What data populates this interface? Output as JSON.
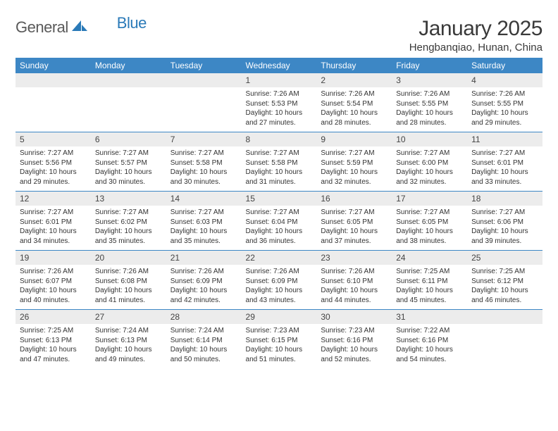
{
  "brand": {
    "part1": "General",
    "part2": "Blue"
  },
  "title": "January 2025",
  "location": "Hengbanqiao, Hunan, China",
  "colors": {
    "header_bg": "#3d87c5",
    "header_text": "#ffffff",
    "daynum_bg": "#ececec",
    "text": "#333333",
    "rule": "#3d87c5",
    "logo_gray": "#5a5a5a",
    "logo_blue": "#2a7ab8"
  },
  "typography": {
    "title_fontsize": 30,
    "location_fontsize": 15,
    "dow_fontsize": 12,
    "daynum_fontsize": 12,
    "detail_fontsize": 10
  },
  "days_of_week": [
    "Sunday",
    "Monday",
    "Tuesday",
    "Wednesday",
    "Thursday",
    "Friday",
    "Saturday"
  ],
  "weeks": [
    [
      null,
      null,
      null,
      {
        "n": "1",
        "sr": "7:26 AM",
        "ss": "5:53 PM",
        "dl": "10 hours and 27 minutes."
      },
      {
        "n": "2",
        "sr": "7:26 AM",
        "ss": "5:54 PM",
        "dl": "10 hours and 28 minutes."
      },
      {
        "n": "3",
        "sr": "7:26 AM",
        "ss": "5:55 PM",
        "dl": "10 hours and 28 minutes."
      },
      {
        "n": "4",
        "sr": "7:26 AM",
        "ss": "5:55 PM",
        "dl": "10 hours and 29 minutes."
      }
    ],
    [
      {
        "n": "5",
        "sr": "7:27 AM",
        "ss": "5:56 PM",
        "dl": "10 hours and 29 minutes."
      },
      {
        "n": "6",
        "sr": "7:27 AM",
        "ss": "5:57 PM",
        "dl": "10 hours and 30 minutes."
      },
      {
        "n": "7",
        "sr": "7:27 AM",
        "ss": "5:58 PM",
        "dl": "10 hours and 30 minutes."
      },
      {
        "n": "8",
        "sr": "7:27 AM",
        "ss": "5:58 PM",
        "dl": "10 hours and 31 minutes."
      },
      {
        "n": "9",
        "sr": "7:27 AM",
        "ss": "5:59 PM",
        "dl": "10 hours and 32 minutes."
      },
      {
        "n": "10",
        "sr": "7:27 AM",
        "ss": "6:00 PM",
        "dl": "10 hours and 32 minutes."
      },
      {
        "n": "11",
        "sr": "7:27 AM",
        "ss": "6:01 PM",
        "dl": "10 hours and 33 minutes."
      }
    ],
    [
      {
        "n": "12",
        "sr": "7:27 AM",
        "ss": "6:01 PM",
        "dl": "10 hours and 34 minutes."
      },
      {
        "n": "13",
        "sr": "7:27 AM",
        "ss": "6:02 PM",
        "dl": "10 hours and 35 minutes."
      },
      {
        "n": "14",
        "sr": "7:27 AM",
        "ss": "6:03 PM",
        "dl": "10 hours and 35 minutes."
      },
      {
        "n": "15",
        "sr": "7:27 AM",
        "ss": "6:04 PM",
        "dl": "10 hours and 36 minutes."
      },
      {
        "n": "16",
        "sr": "7:27 AM",
        "ss": "6:05 PM",
        "dl": "10 hours and 37 minutes."
      },
      {
        "n": "17",
        "sr": "7:27 AM",
        "ss": "6:05 PM",
        "dl": "10 hours and 38 minutes."
      },
      {
        "n": "18",
        "sr": "7:27 AM",
        "ss": "6:06 PM",
        "dl": "10 hours and 39 minutes."
      }
    ],
    [
      {
        "n": "19",
        "sr": "7:26 AM",
        "ss": "6:07 PM",
        "dl": "10 hours and 40 minutes."
      },
      {
        "n": "20",
        "sr": "7:26 AM",
        "ss": "6:08 PM",
        "dl": "10 hours and 41 minutes."
      },
      {
        "n": "21",
        "sr": "7:26 AM",
        "ss": "6:09 PM",
        "dl": "10 hours and 42 minutes."
      },
      {
        "n": "22",
        "sr": "7:26 AM",
        "ss": "6:09 PM",
        "dl": "10 hours and 43 minutes."
      },
      {
        "n": "23",
        "sr": "7:26 AM",
        "ss": "6:10 PM",
        "dl": "10 hours and 44 minutes."
      },
      {
        "n": "24",
        "sr": "7:25 AM",
        "ss": "6:11 PM",
        "dl": "10 hours and 45 minutes."
      },
      {
        "n": "25",
        "sr": "7:25 AM",
        "ss": "6:12 PM",
        "dl": "10 hours and 46 minutes."
      }
    ],
    [
      {
        "n": "26",
        "sr": "7:25 AM",
        "ss": "6:13 PM",
        "dl": "10 hours and 47 minutes."
      },
      {
        "n": "27",
        "sr": "7:24 AM",
        "ss": "6:13 PM",
        "dl": "10 hours and 49 minutes."
      },
      {
        "n": "28",
        "sr": "7:24 AM",
        "ss": "6:14 PM",
        "dl": "10 hours and 50 minutes."
      },
      {
        "n": "29",
        "sr": "7:23 AM",
        "ss": "6:15 PM",
        "dl": "10 hours and 51 minutes."
      },
      {
        "n": "30",
        "sr": "7:23 AM",
        "ss": "6:16 PM",
        "dl": "10 hours and 52 minutes."
      },
      {
        "n": "31",
        "sr": "7:22 AM",
        "ss": "6:16 PM",
        "dl": "10 hours and 54 minutes."
      },
      null
    ]
  ],
  "labels": {
    "sunrise": "Sunrise:",
    "sunset": "Sunset:",
    "daylight": "Daylight:"
  }
}
